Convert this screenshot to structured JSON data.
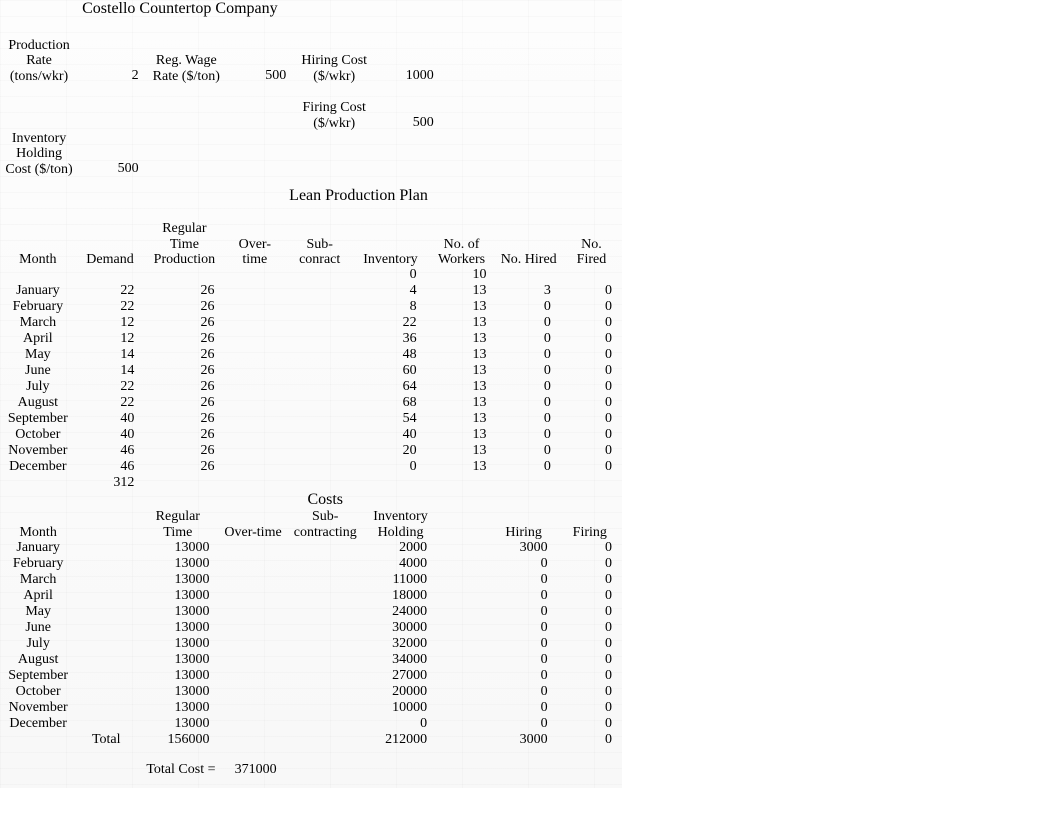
{
  "title": "Costello Countertop Company",
  "params": {
    "prod_rate_label": "Production Rate (tons/wkr)",
    "prod_rate": 2,
    "reg_wage_label": "Reg. Wage Rate ($/ton)",
    "reg_wage": 500,
    "hiring_cost_label": "Hiring Cost ($/wkr)",
    "hiring_cost": 1000,
    "firing_cost_label": "Firing Cost ($/wkr)",
    "firing_cost": 500,
    "inv_hold_label": "Inventory Holding Cost ($/ton)",
    "inv_hold": 500
  },
  "plan": {
    "title": "Lean Production Plan",
    "headers": {
      "month": "Month",
      "demand": "Demand",
      "rtp": "Regular Time Production",
      "ot": "Over-time",
      "sub": "Sub-conract",
      "inv": "Inventory",
      "workers": "No. of Workers",
      "hired": "No. Hired",
      "fired": "No. Fired"
    },
    "init_inventory": 0,
    "init_workers": 10,
    "rows": [
      {
        "month": "January",
        "demand": 22,
        "rtp": 26,
        "inv": 4,
        "workers": 13,
        "hired": 3,
        "fired": 0
      },
      {
        "month": "February",
        "demand": 22,
        "rtp": 26,
        "inv": 8,
        "workers": 13,
        "hired": 0,
        "fired": 0
      },
      {
        "month": "March",
        "demand": 12,
        "rtp": 26,
        "inv": 22,
        "workers": 13,
        "hired": 0,
        "fired": 0
      },
      {
        "month": "April",
        "demand": 12,
        "rtp": 26,
        "inv": 36,
        "workers": 13,
        "hired": 0,
        "fired": 0
      },
      {
        "month": "May",
        "demand": 14,
        "rtp": 26,
        "inv": 48,
        "workers": 13,
        "hired": 0,
        "fired": 0
      },
      {
        "month": "June",
        "demand": 14,
        "rtp": 26,
        "inv": 60,
        "workers": 13,
        "hired": 0,
        "fired": 0
      },
      {
        "month": "July",
        "demand": 22,
        "rtp": 26,
        "inv": 64,
        "workers": 13,
        "hired": 0,
        "fired": 0
      },
      {
        "month": "August",
        "demand": 22,
        "rtp": 26,
        "inv": 68,
        "workers": 13,
        "hired": 0,
        "fired": 0
      },
      {
        "month": "September",
        "demand": 40,
        "rtp": 26,
        "inv": 54,
        "workers": 13,
        "hired": 0,
        "fired": 0
      },
      {
        "month": "October",
        "demand": 40,
        "rtp": 26,
        "inv": 40,
        "workers": 13,
        "hired": 0,
        "fired": 0
      },
      {
        "month": "November",
        "demand": 46,
        "rtp": 26,
        "inv": 20,
        "workers": 13,
        "hired": 0,
        "fired": 0
      },
      {
        "month": "December",
        "demand": 46,
        "rtp": 26,
        "inv": 0,
        "workers": 13,
        "hired": 0,
        "fired": 0
      }
    ],
    "demand_total": 312
  },
  "costs": {
    "title": "Costs",
    "headers": {
      "month": "Month",
      "rt": "Regular Time",
      "ot": "Over-time",
      "sub": "Sub-contracting",
      "inv": "Inventory Holding",
      "hiring": "Hiring",
      "firing": "Firing"
    },
    "rows": [
      {
        "month": "January",
        "rt": 13000,
        "inv": 2000,
        "hiring": 3000,
        "firing": 0
      },
      {
        "month": "February",
        "rt": 13000,
        "inv": 4000,
        "hiring": 0,
        "firing": 0
      },
      {
        "month": "March",
        "rt": 13000,
        "inv": 11000,
        "hiring": 0,
        "firing": 0
      },
      {
        "month": "April",
        "rt": 13000,
        "inv": 18000,
        "hiring": 0,
        "firing": 0
      },
      {
        "month": "May",
        "rt": 13000,
        "inv": 24000,
        "hiring": 0,
        "firing": 0
      },
      {
        "month": "June",
        "rt": 13000,
        "inv": 30000,
        "hiring": 0,
        "firing": 0
      },
      {
        "month": "July",
        "rt": 13000,
        "inv": 32000,
        "hiring": 0,
        "firing": 0
      },
      {
        "month": "August",
        "rt": 13000,
        "inv": 34000,
        "hiring": 0,
        "firing": 0
      },
      {
        "month": "September",
        "rt": 13000,
        "inv": 27000,
        "hiring": 0,
        "firing": 0
      },
      {
        "month": "October",
        "rt": 13000,
        "inv": 20000,
        "hiring": 0,
        "firing": 0
      },
      {
        "month": "November",
        "rt": 13000,
        "inv": 10000,
        "hiring": 0,
        "firing": 0
      },
      {
        "month": "December",
        "rt": 13000,
        "inv": 0,
        "hiring": 0,
        "firing": 0
      }
    ],
    "total_label": "Total",
    "totals": {
      "rt": 156000,
      "inv": 212000,
      "hiring": 3000,
      "firing": 0
    },
    "total_cost_label": "Total Cost =",
    "total_cost": 371000
  }
}
